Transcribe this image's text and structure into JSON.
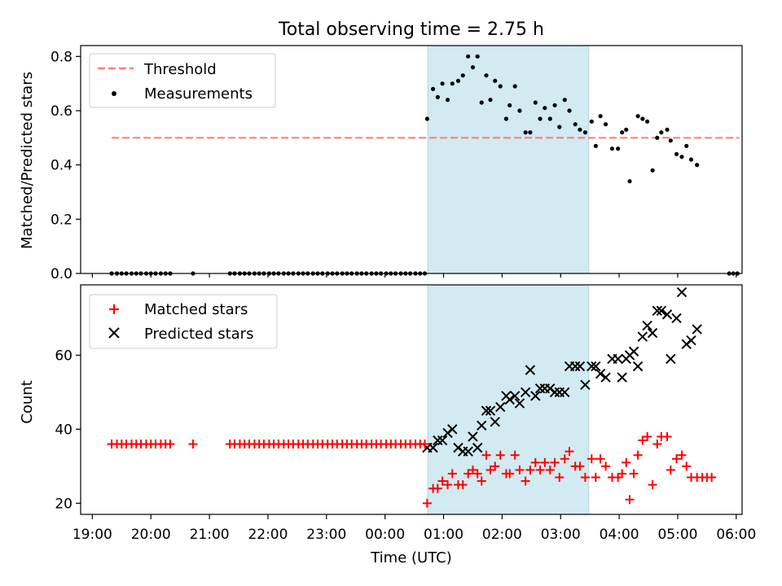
{
  "chart_data": {
    "title": "Total observing time = 2.75 h",
    "xlabel": "Time (UTC)",
    "x_ticks": [
      "19:00",
      "20:00",
      "21:00",
      "22:00",
      "23:00",
      "00:00",
      "01:00",
      "02:00",
      "03:00",
      "04:00",
      "05:00",
      "06:00"
    ],
    "x_range_hours": [
      18.8,
      30.1
    ],
    "observing_window_hours": [
      24.73,
      27.48
    ],
    "colors": {
      "band": "#add8e6",
      "threshold": "#ff7f7f",
      "measurement": "#000000",
      "matched": "#ff0000",
      "predicted": "#000000"
    },
    "top": {
      "type": "scatter",
      "ylabel": "Matched/Predicted stars",
      "ylim": [
        0,
        0.84
      ],
      "yticks": [
        0.0,
        0.2,
        0.4,
        0.6,
        0.8
      ],
      "threshold": {
        "name": "Threshold",
        "value": 0.5,
        "x_range": [
          19.33,
          30.05
        ]
      },
      "legend": [
        "Threshold",
        "Measurements"
      ],
      "legend_position": "top-left",
      "measurements": [
        [
          19.33,
          0
        ],
        [
          19.42,
          0
        ],
        [
          19.5,
          0
        ],
        [
          19.58,
          0
        ],
        [
          19.67,
          0
        ],
        [
          19.75,
          0
        ],
        [
          19.83,
          0
        ],
        [
          19.92,
          0
        ],
        [
          20.0,
          0
        ],
        [
          20.08,
          0
        ],
        [
          20.17,
          0
        ],
        [
          20.25,
          0
        ],
        [
          20.33,
          0
        ],
        [
          20.72,
          0
        ],
        [
          21.35,
          0
        ],
        [
          21.43,
          0
        ],
        [
          21.52,
          0
        ],
        [
          21.6,
          0
        ],
        [
          21.68,
          0
        ],
        [
          21.77,
          0
        ],
        [
          21.85,
          0
        ],
        [
          21.93,
          0
        ],
        [
          22.02,
          0
        ],
        [
          22.1,
          0
        ],
        [
          22.18,
          0
        ],
        [
          22.27,
          0
        ],
        [
          22.35,
          0
        ],
        [
          22.43,
          0
        ],
        [
          22.52,
          0
        ],
        [
          22.6,
          0
        ],
        [
          22.68,
          0
        ],
        [
          22.77,
          0
        ],
        [
          22.85,
          0
        ],
        [
          22.93,
          0
        ],
        [
          23.02,
          0
        ],
        [
          23.1,
          0
        ],
        [
          23.18,
          0
        ],
        [
          23.27,
          0
        ],
        [
          23.35,
          0
        ],
        [
          23.43,
          0
        ],
        [
          23.52,
          0
        ],
        [
          23.6,
          0
        ],
        [
          23.68,
          0
        ],
        [
          23.77,
          0
        ],
        [
          23.85,
          0
        ],
        [
          23.93,
          0
        ],
        [
          24.02,
          0
        ],
        [
          24.1,
          0
        ],
        [
          24.18,
          0
        ],
        [
          24.27,
          0
        ],
        [
          24.35,
          0
        ],
        [
          24.43,
          0
        ],
        [
          24.52,
          0
        ],
        [
          24.6,
          0
        ],
        [
          24.68,
          0
        ],
        [
          24.72,
          0.57
        ],
        [
          24.82,
          0.68
        ],
        [
          24.9,
          0.65
        ],
        [
          24.98,
          0.7
        ],
        [
          25.07,
          0.64
        ],
        [
          25.15,
          0.7
        ],
        [
          25.25,
          0.71
        ],
        [
          25.33,
          0.73
        ],
        [
          25.42,
          0.8
        ],
        [
          25.5,
          0.76
        ],
        [
          25.58,
          0.8
        ],
        [
          25.65,
          0.63
        ],
        [
          25.73,
          0.73
        ],
        [
          25.8,
          0.64
        ],
        [
          25.88,
          0.71
        ],
        [
          25.97,
          0.69
        ],
        [
          26.07,
          0.57
        ],
        [
          26.13,
          0.62
        ],
        [
          26.22,
          0.69
        ],
        [
          26.3,
          0.6
        ],
        [
          26.4,
          0.52
        ],
        [
          26.48,
          0.52
        ],
        [
          26.57,
          0.63
        ],
        [
          26.65,
          0.57
        ],
        [
          26.73,
          0.61
        ],
        [
          26.82,
          0.57
        ],
        [
          26.9,
          0.62
        ],
        [
          26.98,
          0.54
        ],
        [
          27.07,
          0.64
        ],
        [
          27.15,
          0.6
        ],
        [
          27.25,
          0.55
        ],
        [
          27.33,
          0.53
        ],
        [
          27.42,
          0.52
        ],
        [
          27.53,
          0.56
        ],
        [
          27.6,
          0.47
        ],
        [
          27.68,
          0.58
        ],
        [
          27.77,
          0.55
        ],
        [
          27.88,
          0.46
        ],
        [
          27.98,
          0.46
        ],
        [
          28.05,
          0.52
        ],
        [
          28.12,
          0.53
        ],
        [
          28.18,
          0.34
        ],
        [
          28.32,
          0.58
        ],
        [
          28.4,
          0.57
        ],
        [
          28.48,
          0.56
        ],
        [
          28.57,
          0.38
        ],
        [
          28.65,
          0.5
        ],
        [
          28.72,
          0.52
        ],
        [
          28.82,
          0.53
        ],
        [
          28.88,
          0.49
        ],
        [
          28.98,
          0.44
        ],
        [
          29.07,
          0.43
        ],
        [
          29.15,
          0.47
        ],
        [
          29.23,
          0.42
        ],
        [
          29.33,
          0.4
        ],
        [
          29.88,
          0
        ],
        [
          29.95,
          0
        ],
        [
          30.02,
          0
        ]
      ]
    },
    "bottom": {
      "type": "scatter",
      "ylabel": "Count",
      "ylim": [
        17,
        79
      ],
      "yticks": [
        20,
        40,
        60
      ],
      "legend": [
        "Matched stars",
        "Predicted stars"
      ],
      "legend_position": "top-left",
      "matched": [
        [
          19.33,
          36
        ],
        [
          19.42,
          36
        ],
        [
          19.5,
          36
        ],
        [
          19.58,
          36
        ],
        [
          19.67,
          36
        ],
        [
          19.75,
          36
        ],
        [
          19.83,
          36
        ],
        [
          19.92,
          36
        ],
        [
          20.0,
          36
        ],
        [
          20.08,
          36
        ],
        [
          20.17,
          36
        ],
        [
          20.25,
          36
        ],
        [
          20.33,
          36
        ],
        [
          20.72,
          36
        ],
        [
          21.35,
          36
        ],
        [
          21.43,
          36
        ],
        [
          21.52,
          36
        ],
        [
          21.6,
          36
        ],
        [
          21.68,
          36
        ],
        [
          21.77,
          36
        ],
        [
          21.85,
          36
        ],
        [
          21.93,
          36
        ],
        [
          22.02,
          36
        ],
        [
          22.1,
          36
        ],
        [
          22.18,
          36
        ],
        [
          22.27,
          36
        ],
        [
          22.35,
          36
        ],
        [
          22.43,
          36
        ],
        [
          22.52,
          36
        ],
        [
          22.6,
          36
        ],
        [
          22.68,
          36
        ],
        [
          22.77,
          36
        ],
        [
          22.85,
          36
        ],
        [
          22.93,
          36
        ],
        [
          23.02,
          36
        ],
        [
          23.1,
          36
        ],
        [
          23.18,
          36
        ],
        [
          23.27,
          36
        ],
        [
          23.35,
          36
        ],
        [
          23.43,
          36
        ],
        [
          23.52,
          36
        ],
        [
          23.6,
          36
        ],
        [
          23.68,
          36
        ],
        [
          23.77,
          36
        ],
        [
          23.85,
          36
        ],
        [
          23.93,
          36
        ],
        [
          24.02,
          36
        ],
        [
          24.1,
          36
        ],
        [
          24.18,
          36
        ],
        [
          24.27,
          36
        ],
        [
          24.35,
          36
        ],
        [
          24.43,
          36
        ],
        [
          24.52,
          36
        ],
        [
          24.6,
          36
        ],
        [
          24.68,
          36
        ],
        [
          24.72,
          20
        ],
        [
          24.82,
          24
        ],
        [
          24.9,
          24
        ],
        [
          24.98,
          26
        ],
        [
          25.07,
          25
        ],
        [
          25.15,
          28
        ],
        [
          25.25,
          25
        ],
        [
          25.33,
          25
        ],
        [
          25.42,
          28
        ],
        [
          25.5,
          29
        ],
        [
          25.58,
          28
        ],
        [
          25.65,
          26
        ],
        [
          25.73,
          33
        ],
        [
          25.8,
          29
        ],
        [
          25.88,
          30
        ],
        [
          25.97,
          33
        ],
        [
          26.07,
          28
        ],
        [
          26.13,
          28
        ],
        [
          26.22,
          33
        ],
        [
          26.3,
          29
        ],
        [
          26.4,
          26
        ],
        [
          26.48,
          29
        ],
        [
          26.57,
          31
        ],
        [
          26.65,
          29
        ],
        [
          26.73,
          31
        ],
        [
          26.82,
          29
        ],
        [
          26.9,
          31
        ],
        [
          26.98,
          27
        ],
        [
          27.07,
          32
        ],
        [
          27.15,
          34
        ],
        [
          27.25,
          30
        ],
        [
          27.33,
          30
        ],
        [
          27.42,
          27
        ],
        [
          27.53,
          32
        ],
        [
          27.6,
          27
        ],
        [
          27.68,
          32
        ],
        [
          27.77,
          30
        ],
        [
          27.88,
          27
        ],
        [
          27.98,
          27
        ],
        [
          28.05,
          28
        ],
        [
          28.12,
          31
        ],
        [
          28.18,
          21
        ],
        [
          28.25,
          28
        ],
        [
          28.32,
          33
        ],
        [
          28.4,
          37
        ],
        [
          28.48,
          38
        ],
        [
          28.57,
          25
        ],
        [
          28.65,
          36
        ],
        [
          28.72,
          38
        ],
        [
          28.82,
          38
        ],
        [
          28.88,
          29
        ],
        [
          28.98,
          32
        ],
        [
          29.07,
          33
        ],
        [
          29.15,
          30
        ],
        [
          29.23,
          27
        ],
        [
          29.33,
          27
        ],
        [
          29.42,
          27
        ],
        [
          29.5,
          27
        ],
        [
          29.58,
          27
        ]
      ],
      "predicted": [
        [
          24.72,
          35
        ],
        [
          24.82,
          35
        ],
        [
          24.9,
          37
        ],
        [
          24.98,
          37
        ],
        [
          25.07,
          39
        ],
        [
          25.15,
          40
        ],
        [
          25.25,
          35
        ],
        [
          25.33,
          34
        ],
        [
          25.42,
          34
        ],
        [
          25.5,
          38
        ],
        [
          25.58,
          35
        ],
        [
          25.65,
          41
        ],
        [
          25.73,
          45
        ],
        [
          25.8,
          45
        ],
        [
          25.88,
          42
        ],
        [
          25.97,
          46
        ],
        [
          26.07,
          49
        ],
        [
          26.13,
          48
        ],
        [
          26.22,
          49
        ],
        [
          26.3,
          47
        ],
        [
          26.4,
          50
        ],
        [
          26.48,
          56
        ],
        [
          26.57,
          49
        ],
        [
          26.65,
          51
        ],
        [
          26.73,
          51
        ],
        [
          26.82,
          51
        ],
        [
          26.9,
          50
        ],
        [
          26.98,
          50
        ],
        [
          27.07,
          50
        ],
        [
          27.15,
          57
        ],
        [
          27.25,
          57
        ],
        [
          27.33,
          57
        ],
        [
          27.42,
          52
        ],
        [
          27.53,
          57
        ],
        [
          27.6,
          57
        ],
        [
          27.68,
          55
        ],
        [
          27.77,
          54
        ],
        [
          27.88,
          59
        ],
        [
          27.98,
          59
        ],
        [
          28.05,
          54
        ],
        [
          28.12,
          59
        ],
        [
          28.18,
          60
        ],
        [
          28.25,
          61
        ],
        [
          28.32,
          57
        ],
        [
          28.4,
          65
        ],
        [
          28.48,
          68
        ],
        [
          28.57,
          66
        ],
        [
          28.65,
          72
        ],
        [
          28.72,
          72
        ],
        [
          28.82,
          71
        ],
        [
          28.88,
          59
        ],
        [
          28.98,
          70
        ],
        [
          29.07,
          77
        ],
        [
          29.15,
          63
        ],
        [
          29.23,
          64
        ],
        [
          29.33,
          67
        ]
      ]
    }
  }
}
